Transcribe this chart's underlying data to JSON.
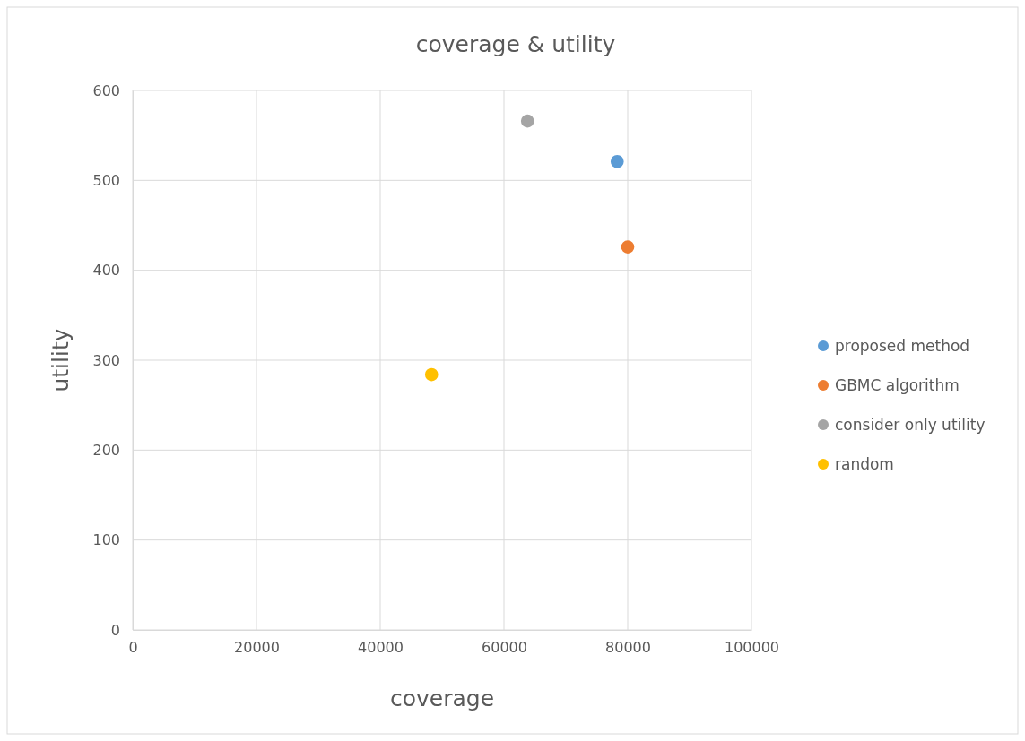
{
  "chart_data": {
    "type": "scatter",
    "title": "coverage & utility",
    "xlabel": "coverage",
    "ylabel": "utility",
    "series": [
      {
        "name": "proposed method",
        "color": "#5b9bd5",
        "x": [
          78300
        ],
        "values": [
          521
        ]
      },
      {
        "name": "GBMC algorithm",
        "color": "#ed7d31",
        "x": [
          80000
        ],
        "values": [
          426
        ]
      },
      {
        "name": "consider only utility",
        "color": "#a5a5a5",
        "x": [
          63800
        ],
        "values": [
          566
        ]
      },
      {
        "name": "random",
        "color": "#ffc000",
        "x": [
          48300
        ],
        "values": [
          284
        ]
      }
    ],
    "xlim": [
      0,
      100000
    ],
    "xticks": [
      0,
      20000,
      40000,
      60000,
      80000,
      100000
    ],
    "ylim": [
      0,
      600
    ],
    "yticks": [
      0,
      100,
      200,
      300,
      400,
      500,
      600
    ],
    "grid": true,
    "legend": "right",
    "marker": "circle"
  }
}
